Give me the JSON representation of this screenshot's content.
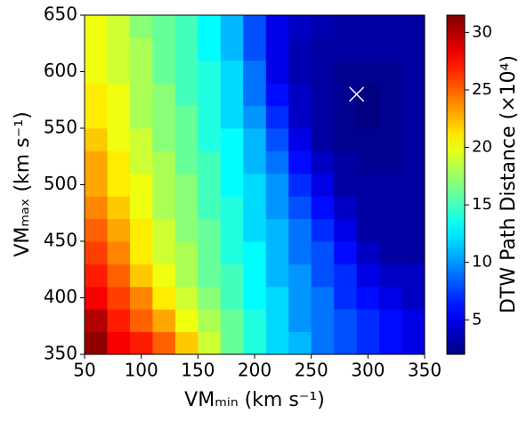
{
  "chart_data": {
    "type": "heatmap",
    "xlabel": "VMₘᵢₙ (km s⁻¹)",
    "ylabel": "VMₘₐₓ (km s⁻¹)",
    "x_edges": [
      50,
      70,
      90,
      110,
      130,
      150,
      170,
      190,
      210,
      230,
      250,
      270,
      290,
      310,
      330,
      350
    ],
    "y_edges": [
      350,
      370,
      390,
      410,
      430,
      450,
      470,
      490,
      510,
      530,
      550,
      570,
      590,
      610,
      630,
      650
    ],
    "values": [
      [
        31,
        28,
        27,
        25,
        22,
        19,
        16,
        14,
        12,
        11,
        9,
        8,
        7,
        6,
        5
      ],
      [
        30,
        27,
        25,
        23,
        20,
        18,
        16,
        14,
        12,
        10,
        9,
        8,
        7,
        6,
        5
      ],
      [
        28,
        26,
        24,
        21,
        19,
        17,
        15,
        13,
        12,
        10,
        9,
        7,
        6,
        5,
        4
      ],
      [
        27,
        25,
        22,
        20,
        18,
        16,
        15,
        13,
        11,
        10,
        8,
        7,
        5,
        4,
        4
      ],
      [
        26,
        24,
        21,
        19,
        18,
        16,
        14,
        13,
        11,
        9,
        8,
        6,
        4,
        3,
        3
      ],
      [
        25,
        23,
        21,
        19,
        17,
        16,
        14,
        12,
        11,
        9,
        7,
        5,
        3,
        3,
        3
      ],
      [
        24,
        22,
        20,
        18,
        17,
        15,
        14,
        12,
        10,
        8,
        6,
        4,
        3,
        3,
        3
      ],
      [
        23,
        21,
        20,
        18,
        17,
        15,
        13,
        12,
        10,
        7,
        5,
        3,
        3,
        3,
        3
      ],
      [
        23,
        21,
        19,
        18,
        16,
        15,
        13,
        11,
        9,
        6,
        4,
        3,
        2.5,
        2.5,
        3
      ],
      [
        22,
        20,
        19,
        17,
        16,
        14,
        13,
        11,
        8,
        5,
        3,
        2.5,
        2.5,
        2.5,
        3
      ],
      [
        21,
        20,
        18,
        17,
        16,
        14,
        12,
        10,
        7,
        4,
        3,
        2.5,
        2,
        2.5,
        3
      ],
      [
        21,
        20,
        18,
        17,
        15,
        14,
        12,
        9,
        6,
        4,
        3,
        2.5,
        2,
        2.5,
        3
      ],
      [
        20,
        19,
        18,
        16,
        15,
        14,
        12,
        9,
        5,
        3.5,
        3,
        2.5,
        2.5,
        2.5,
        3
      ],
      [
        20,
        19,
        18,
        16,
        15,
        13,
        11,
        8,
        5,
        3.5,
        3,
        3,
        3,
        3,
        3
      ],
      [
        20,
        19,
        17,
        16,
        15,
        13,
        11,
        8,
        5,
        4,
        3.5,
        3,
        3,
        3,
        3
      ]
    ],
    "colormap": "jet",
    "xlim": [
      50,
      350
    ],
    "ylim": [
      350,
      650
    ],
    "xticks": [
      50,
      100,
      150,
      200,
      250,
      300,
      350
    ],
    "yticks": [
      350,
      400,
      450,
      500,
      550,
      600,
      650
    ],
    "marker": {
      "x": 290,
      "y": 580,
      "color": "#ffffff"
    },
    "colorbar": {
      "label": "DTW Path Distance (×10⁴)",
      "clim": [
        2,
        31.5
      ],
      "ticks": [
        5,
        10,
        15,
        20,
        25,
        30
      ]
    }
  }
}
